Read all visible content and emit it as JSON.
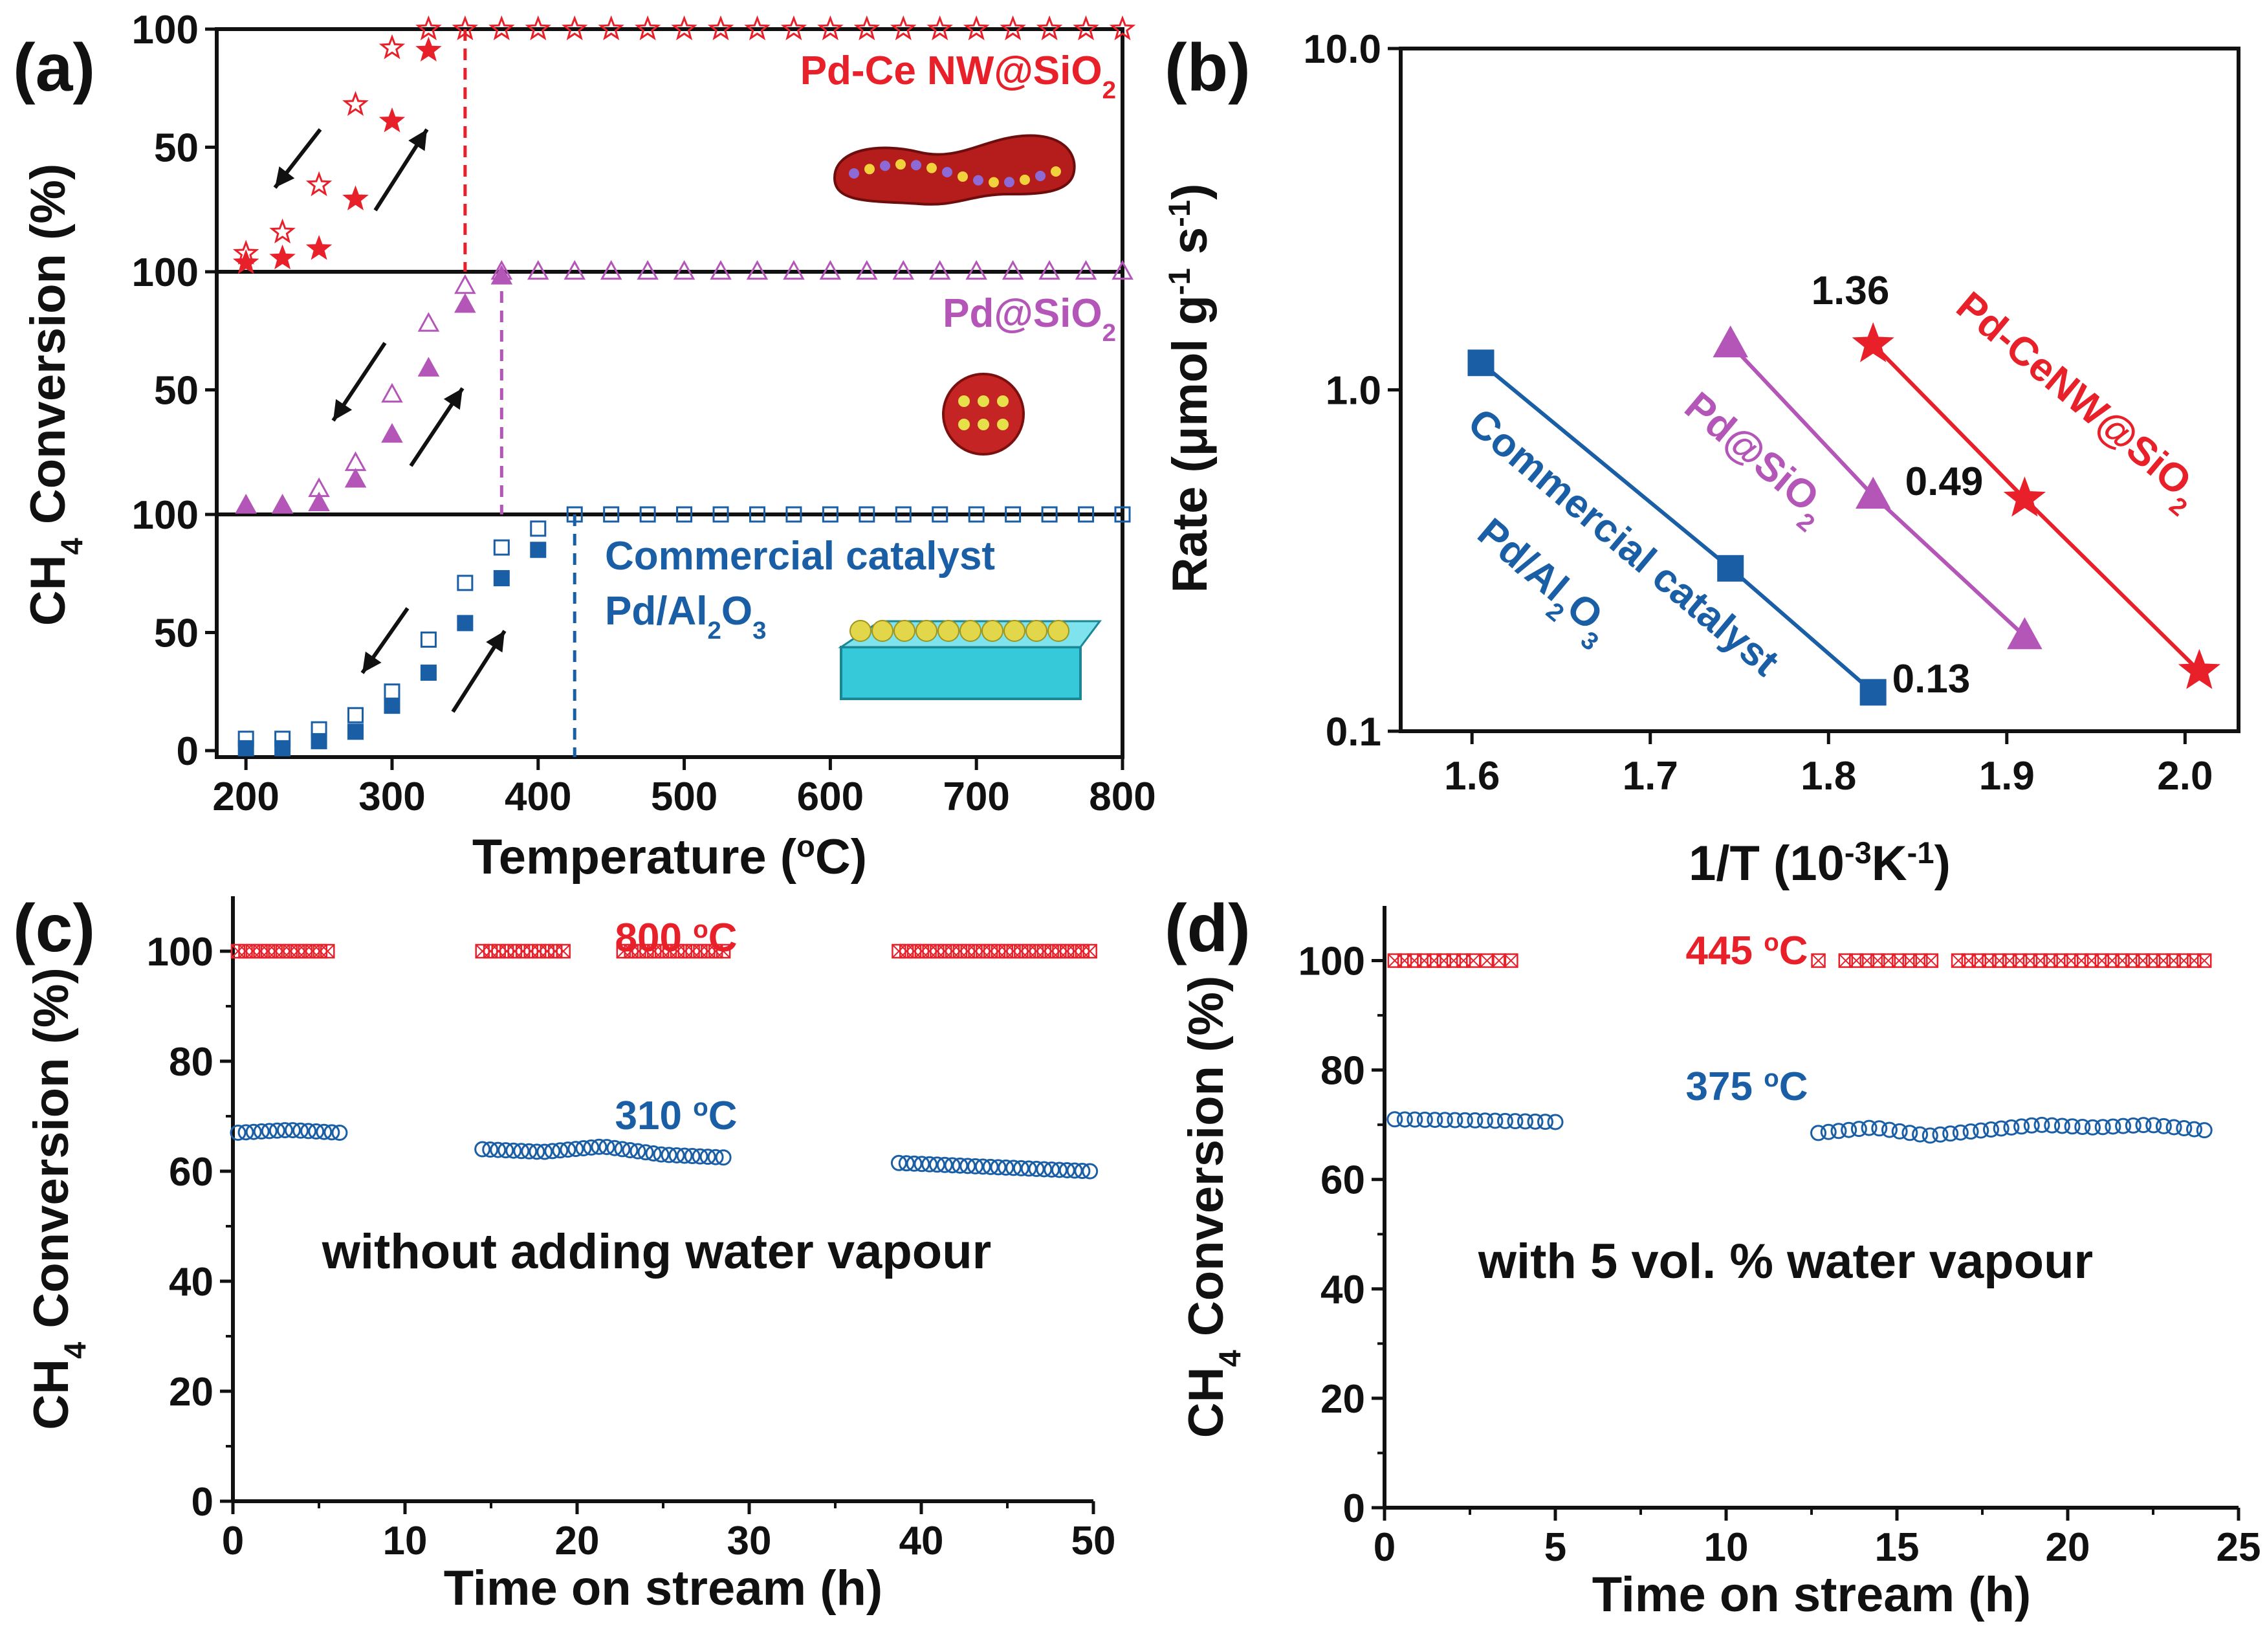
{
  "colors": {
    "red": "#e8202a",
    "purple": "#b455b8",
    "blue": "#1a5ea6",
    "axis": "#111111"
  },
  "chart_data": [
    {
      "panel": "(a)",
      "type": "scatter",
      "xlabel_parts": [
        "Temperature (",
        "o",
        "C)"
      ],
      "ylabel_parts": [
        "CH",
        "4",
        " Conversion (%)"
      ],
      "xlim": [
        180,
        800
      ],
      "x_ticks": [
        200,
        300,
        400,
        500,
        600,
        700,
        800
      ],
      "y_ticks": [
        0,
        50,
        100
      ],
      "subpanels": [
        {
          "label_parts": [
            "Pd-Ce NW@SiO",
            "2"
          ],
          "color": "#e8202a",
          "marker": "star",
          "light_off_temperature": 350,
          "heating": {
            "x": [
              200,
              225,
              250,
              275,
              300,
              325
            ],
            "y": [
              1,
              3,
              7,
              28,
              61,
              91
            ]
          },
          "cooling": {
            "x": [
              200,
              225,
              250,
              275,
              300,
              325,
              350,
              375,
              400,
              425,
              450,
              475,
              500,
              525,
              550,
              575,
              600,
              625,
              650,
              675,
              700,
              725,
              750,
              775,
              800
            ],
            "y": [
              5,
              14,
              34,
              68,
              92,
              100,
              100,
              100,
              100,
              100,
              100,
              100,
              100,
              100,
              100,
              100,
              100,
              100,
              100,
              100,
              100,
              100,
              100,
              100,
              100
            ]
          }
        },
        {
          "label_parts": [
            "Pd@SiO",
            "2"
          ],
          "color": "#b455b8",
          "marker": "triangle",
          "light_off_temperature": 375,
          "heating": {
            "x": [
              200,
              225,
              250,
              275,
              300,
              325,
              350,
              375
            ],
            "y": [
              1,
              1,
              2,
              12,
              31,
              59,
              86,
              98
            ]
          },
          "cooling": {
            "x": [
              200,
              225,
              250,
              275,
              300,
              325,
              350,
              375,
              400,
              425,
              450,
              475,
              500,
              525,
              550,
              575,
              600,
              625,
              650,
              675,
              700,
              725,
              750,
              775,
              800
            ],
            "y": [
              1,
              1,
              8,
              19,
              48,
              78,
              94,
              100,
              100,
              100,
              100,
              100,
              100,
              100,
              100,
              100,
              100,
              100,
              100,
              100,
              100,
              100,
              100,
              100,
              100
            ]
          }
        },
        {
          "label_lines": [
            [
              "Commercial catalyst"
            ],
            [
              "Pd/Al",
              "2",
              "O",
              "3"
            ]
          ],
          "color": "#1a5ea6",
          "marker": "square",
          "light_off_temperature": 425,
          "heating": {
            "x": [
              200,
              225,
              250,
              275,
              300,
              325,
              350,
              375,
              400
            ],
            "y": [
              1,
              1,
              4,
              8,
              19,
              33,
              54,
              73,
              85
            ]
          },
          "cooling": {
            "x": [
              200,
              225,
              250,
              275,
              300,
              325,
              350,
              375,
              400,
              425,
              450,
              475,
              500,
              525,
              550,
              575,
              600,
              625,
              650,
              675,
              700,
              725,
              750,
              775,
              800
            ],
            "y": [
              5,
              5,
              9,
              15,
              25,
              47,
              71,
              86,
              94,
              100,
              100,
              100,
              100,
              100,
              100,
              100,
              100,
              100,
              100,
              100,
              100,
              100,
              100,
              100,
              100
            ]
          }
        }
      ]
    },
    {
      "panel": "(b)",
      "type": "line",
      "yscale": "log",
      "xlabel_parts": [
        "1/T (10",
        "-3",
        "K",
        "-1",
        ")"
      ],
      "ylabel_parts": [
        "Rate (μmol g",
        "-1",
        " s",
        "-1",
        ")"
      ],
      "xlim": [
        1.56,
        2.03
      ],
      "ylim": [
        0.1,
        10
      ],
      "x_ticks": [
        1.6,
        1.7,
        1.8,
        1.9,
        2.0
      ],
      "y_ticks": [
        0.1,
        1,
        10
      ],
      "y_tick_labels": [
        "0.1",
        "1.0",
        "10.0"
      ],
      "series": [
        {
          "label_lines": [
            [
              "Commercial catalyst"
            ],
            [
              "Pd/Al",
              "2",
              "O",
              "3"
            ]
          ],
          "color": "#1a5ea6",
          "marker": "square",
          "x": [
            1.605,
            1.745,
            1.825
          ],
          "y": [
            1.2,
            0.3,
            0.13
          ]
        },
        {
          "label_parts": [
            "Pd@SiO",
            "2"
          ],
          "color": "#b455b8",
          "marker": "triangle",
          "x": [
            1.745,
            1.825,
            1.91
          ],
          "y": [
            1.36,
            0.49,
            0.19
          ]
        },
        {
          "label_parts": [
            "Pd-CeNW@SiO",
            "2"
          ],
          "color": "#e8202a",
          "marker": "star",
          "x": [
            1.825,
            1.91,
            2.008
          ],
          "y": [
            1.36,
            0.48,
            0.15
          ]
        }
      ],
      "annotations": [
        "1.36",
        "0.49",
        "0.13"
      ]
    },
    {
      "panel": "(c)",
      "type": "scatter",
      "xlabel": "Time on stream (h)",
      "ylabel_parts": [
        "CH",
        "4",
        " Conversion (%)"
      ],
      "xlim": [
        0,
        50
      ],
      "ylim": [
        0,
        110
      ],
      "x_ticks": [
        0,
        10,
        20,
        30,
        40,
        50
      ],
      "y_ticks": [
        0,
        20,
        40,
        60,
        80,
        100
      ],
      "condition": "without adding water vapour",
      "series": [
        {
          "temperature_parts": [
            "800 ",
            "o",
            "C"
          ],
          "color": "#e8202a",
          "marker": "square-hatched",
          "segments": [
            {
              "x_start": 0.3,
              "x_end": 5.5,
              "y": [
                100
              ]
            },
            {
              "x_start": 14.5,
              "x_end": 19.2,
              "y": [
                100
              ]
            },
            {
              "x_start": 22.7,
              "x_end": 28.5,
              "y": [
                100
              ]
            },
            {
              "x_start": 38.7,
              "x_end": 49.8,
              "y": [
                100
              ]
            }
          ]
        },
        {
          "temperature_parts": [
            "310 ",
            "o",
            "C"
          ],
          "color": "#1a5ea6",
          "marker": "circle",
          "segments": [
            {
              "x_start": 0.3,
              "x_end": 6.2,
              "y": [
                67,
                67.5,
                67
              ]
            },
            {
              "x_start": 14.5,
              "x_end": 28.5,
              "y": [
                64,
                63.5,
                64.5,
                63,
                62.5
              ]
            },
            {
              "x_start": 38.7,
              "x_end": 49.8,
              "y": [
                61.5,
                61,
                60.5,
                60
              ]
            }
          ]
        }
      ]
    },
    {
      "panel": "(d)",
      "type": "scatter",
      "xlabel": "Time on stream (h)",
      "ylabel_parts": [
        "CH",
        "4",
        " Conversion (%)"
      ],
      "xlim": [
        0,
        25
      ],
      "ylim": [
        0,
        110
      ],
      "x_ticks": [
        0,
        5,
        10,
        15,
        20,
        25
      ],
      "y_ticks": [
        0,
        20,
        40,
        60,
        80,
        100
      ],
      "condition": "with 5 vol. % water vapour",
      "series": [
        {
          "temperature_parts": [
            "445 ",
            "o",
            "C"
          ],
          "color": "#e8202a",
          "marker": "square-hatched",
          "segments": [
            {
              "x_start": 0.3,
              "x_end": 2.6,
              "y": [
                100
              ]
            },
            {
              "x_start": 3.0,
              "x_end": 3.7,
              "y": [
                100
              ]
            },
            {
              "x_start": 12.7,
              "x_end": 12.7,
              "y": [
                100
              ]
            },
            {
              "x_start": 13.5,
              "x_end": 16.0,
              "y": [
                100
              ]
            },
            {
              "x_start": 16.8,
              "x_end": 21.0,
              "y": [
                100
              ]
            },
            {
              "x_start": 21.3,
              "x_end": 24.0,
              "y": [
                100
              ]
            }
          ]
        },
        {
          "temperature_parts": [
            "375 ",
            "o",
            "C"
          ],
          "color": "#1a5ea6",
          "marker": "circle",
          "segments": [
            {
              "x_start": 0.3,
              "x_end": 5.0,
              "y": [
                71,
                70.8,
                70.5
              ]
            },
            {
              "x_start": 12.7,
              "x_end": 24.0,
              "y": [
                68.5,
                69.5,
                68,
                69,
                70,
                69.5,
                70,
                69
              ]
            }
          ]
        }
      ]
    }
  ]
}
